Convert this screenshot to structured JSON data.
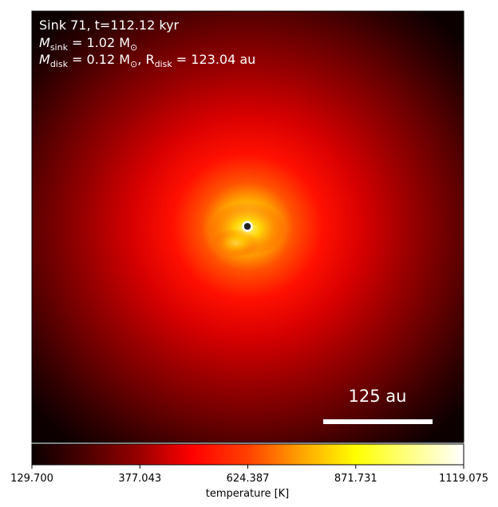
{
  "chart_data": {
    "type": "heatmap",
    "title": "",
    "annotations": {
      "line1": "Sink 71, t=112.12 kyr",
      "line2_var": "M",
      "line2_sub": "sink",
      "line2_rest": " = 1.02 M",
      "line2_sun": "⊙",
      "line3_var": "M",
      "line3_sub": "disk",
      "line3_mid": " = 0.12 M",
      "line3_sun": "⊙",
      "line3_comma": ", R",
      "line3_sub2": "disk",
      "line3_rest": " = 123.04 au"
    },
    "scale_bar": {
      "label": "125 au",
      "length_au": 125
    },
    "colorbar": {
      "label": "temperature [K]",
      "colormap": "hot",
      "min": 129.7,
      "max": 1119.075,
      "ticks": [
        "129.700",
        "377.043",
        "624.387",
        "871.731",
        "1119.075"
      ]
    },
    "sink_marker": {
      "color": "#222222",
      "edge": "#ffffff"
    },
    "colors": {
      "background": "#000000",
      "hot_stops": [
        "#0b0000",
        "#4a0000",
        "#9a0000",
        "#e00000",
        "#ff3000",
        "#ff8000",
        "#ffd000",
        "#ffff40",
        "#ffffff"
      ]
    }
  }
}
